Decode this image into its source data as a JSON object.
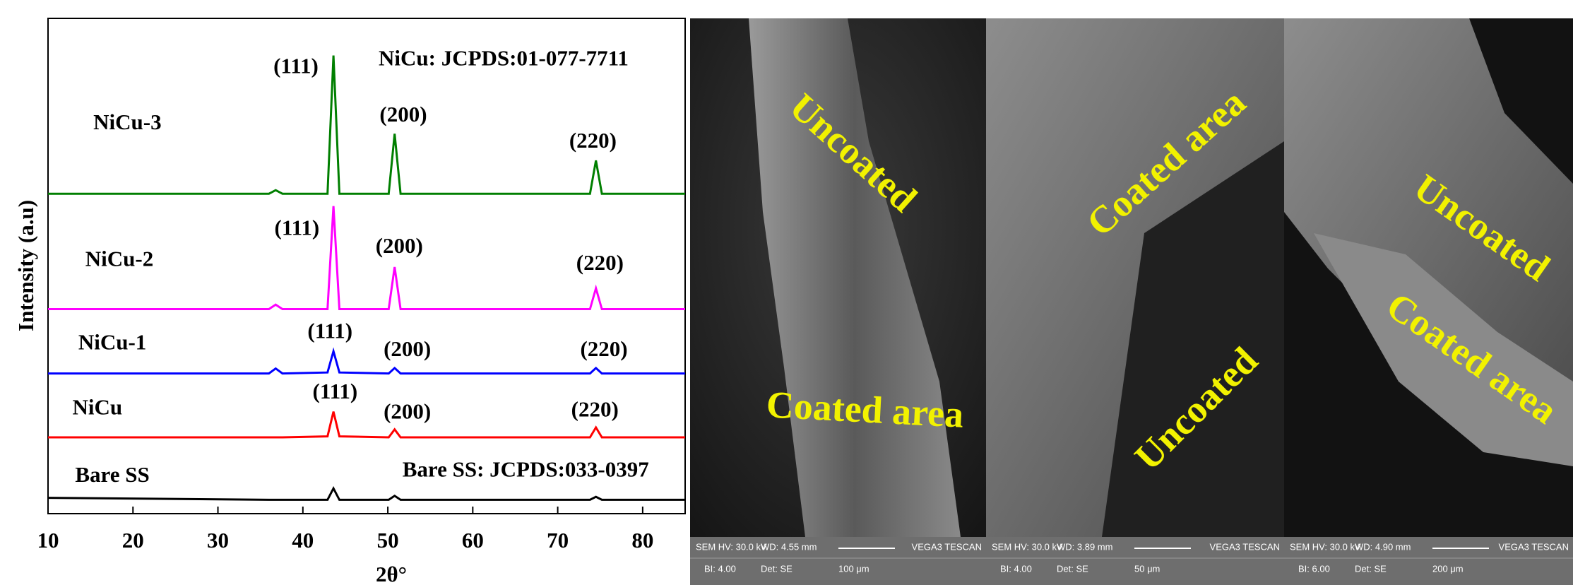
{
  "chart_data": {
    "type": "line",
    "xlabel": "2θ°",
    "ylabel": "Intensity (a.u)",
    "x": [
      10,
      36,
      36.8,
      37.6,
      42.9,
      43.6,
      44.3,
      50.1,
      50.8,
      51.5,
      73.8,
      74.5,
      75.2,
      85
    ],
    "xlim": [
      10,
      85
    ],
    "xticks": [
      10,
      20,
      30,
      40,
      50,
      60,
      70,
      80
    ],
    "ylim": [
      0,
      100
    ],
    "series": [
      {
        "name": "NiCu-3",
        "color": "#007f00",
        "values": [
          64.6,
          64.6,
          65.3,
          64.6,
          64.6,
          92.5,
          64.6,
          64.6,
          76.7,
          64.6,
          64.6,
          71.3,
          64.6,
          64.6
        ]
      },
      {
        "name": "NiCu-2",
        "color": "#ff00ff",
        "values": [
          41.3,
          41.3,
          42.2,
          41.3,
          41.3,
          62.1,
          41.3,
          41.3,
          49.8,
          41.3,
          41.3,
          45.5,
          41.3,
          41.3
        ]
      },
      {
        "name": "NiCu-1",
        "color": "#0000ff",
        "values": [
          28.3,
          28.3,
          29.3,
          28.3,
          28.5,
          32.8,
          28.5,
          28.3,
          29.4,
          28.3,
          28.3,
          29.4,
          28.3,
          28.3
        ]
      },
      {
        "name": "NiCu",
        "color": "#ff0000",
        "values": [
          15.4,
          15.4,
          15.4,
          15.4,
          15.6,
          20.6,
          15.6,
          15.4,
          17,
          15.4,
          15.4,
          17.4,
          15.4,
          15.4
        ]
      },
      {
        "name": "Bare SS",
        "color": "#000000",
        "values": [
          3.2,
          2.8,
          2.8,
          2.8,
          2.8,
          5.1,
          2.8,
          2.8,
          3.6,
          2.8,
          2.8,
          3.4,
          2.8,
          2.8
        ]
      }
    ],
    "annotations": [
      "NiCu: JCPDS:01-077-7711",
      "(111)",
      "(200)",
      "(220)",
      "(111)",
      "(200)",
      "(220)",
      "(111)",
      "(200)",
      "(220)",
      "(111)",
      "(200)",
      "(220)",
      "Bare SS: JCPDS:033-0397"
    ]
  },
  "sem_panels": [
    {
      "labels": [
        "Uncoated",
        "Coated area"
      ],
      "info": [
        "SEM HV: 30.0 kV",
        "WD: 4.55 mm",
        "VEGA3 TESCAN",
        "BI: 4.00",
        "Det: SE",
        "100 μm"
      ]
    },
    {
      "labels": [
        "Coated area",
        "Uncoated"
      ],
      "info": [
        "SEM HV: 30.0 kV",
        "WD: 3.89 mm",
        "VEGA3 TESCAN",
        "BI: 4.00",
        "Det: SE",
        "50 μm"
      ]
    },
    {
      "labels": [
        "Uncoated",
        "Coated area"
      ],
      "info": [
        "SEM HV: 30.0 kV",
        "WD: 4.90 mm",
        "VEGA3 TESCAN",
        "BI: 6.00",
        "Det: SE",
        "200 μm"
      ]
    }
  ]
}
